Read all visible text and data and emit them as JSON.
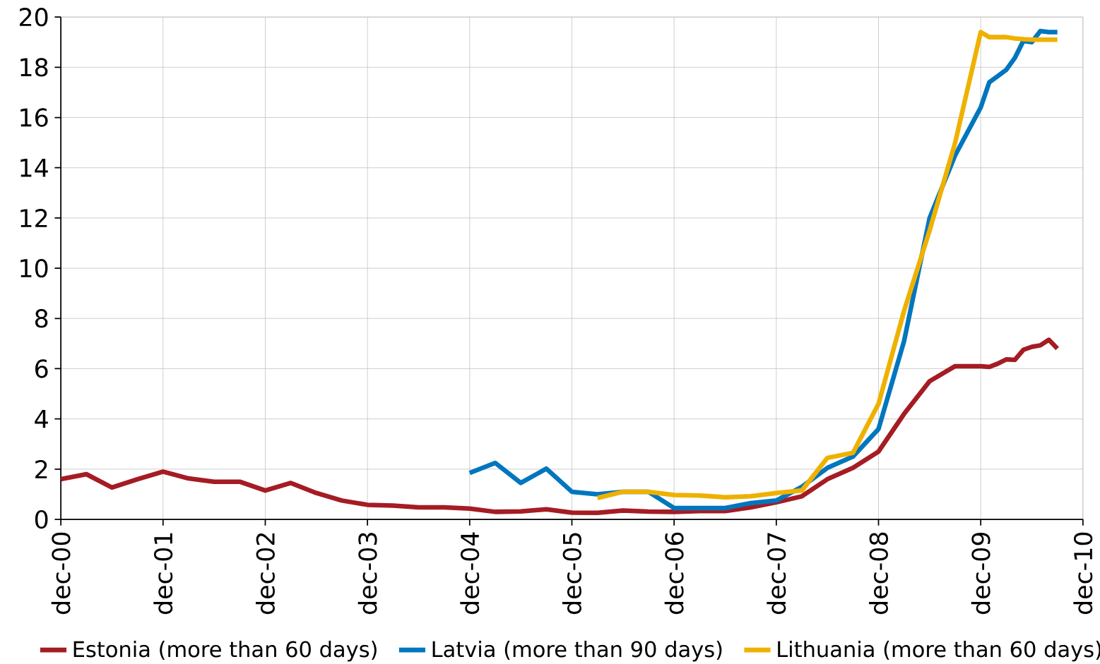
{
  "chart_data": {
    "type": "line",
    "x": [
      "2000-12",
      "2001-03",
      "2001-06",
      "2001-09",
      "2001-12",
      "2002-03",
      "2002-06",
      "2002-09",
      "2002-12",
      "2003-03",
      "2003-06",
      "2003-09",
      "2003-12",
      "2004-03",
      "2004-06",
      "2004-09",
      "2004-12",
      "2005-03",
      "2005-06",
      "2005-09",
      "2005-12",
      "2006-03",
      "2006-06",
      "2006-09",
      "2006-12",
      "2007-03",
      "2007-06",
      "2007-09",
      "2007-12",
      "2008-03",
      "2008-06",
      "2008-09",
      "2008-12",
      "2009-03",
      "2009-06",
      "2009-09",
      "2009-12",
      "2010-01",
      "2010-02",
      "2010-03",
      "2010-04",
      "2010-05",
      "2010-06",
      "2010-07",
      "2010-08",
      "2010-09"
    ],
    "series": [
      {
        "name": "Estonia (more than 60 days)",
        "color": "#a51c24",
        "values": [
          1.6,
          1.8,
          1.27,
          1.6,
          1.9,
          1.63,
          1.5,
          1.5,
          1.15,
          1.45,
          1.05,
          0.75,
          0.58,
          0.55,
          0.48,
          0.48,
          0.43,
          0.3,
          0.32,
          0.4,
          0.27,
          0.26,
          0.35,
          0.31,
          0.3,
          0.33,
          0.33,
          0.48,
          0.68,
          0.92,
          1.6,
          2.05,
          2.7,
          4.2,
          5.5,
          6.1,
          6.1,
          6.07,
          6.2,
          6.37,
          6.35,
          6.75,
          6.87,
          6.93,
          7.15,
          6.8
        ]
      },
      {
        "name": "Latvia (more than 90 days)",
        "color": "#0076be",
        "values": [
          null,
          null,
          null,
          null,
          null,
          null,
          null,
          null,
          null,
          null,
          null,
          null,
          null,
          null,
          null,
          null,
          1.85,
          2.25,
          1.45,
          2.02,
          1.1,
          1.0,
          1.1,
          1.1,
          0.45,
          0.45,
          0.45,
          0.65,
          0.75,
          1.3,
          2.05,
          2.5,
          3.6,
          7.1,
          12.0,
          14.5,
          16.4,
          17.4,
          17.65,
          17.9,
          18.37,
          19.05,
          19.0,
          19.44,
          19.4,
          19.4
        ]
      },
      {
        "name": "Lithuania (more than 60 days)",
        "color": "#efb100",
        "values": [
          null,
          null,
          null,
          null,
          null,
          null,
          null,
          null,
          null,
          null,
          null,
          null,
          null,
          null,
          null,
          null,
          null,
          null,
          null,
          null,
          null,
          0.85,
          1.1,
          1.1,
          0.97,
          0.95,
          0.88,
          0.92,
          1.05,
          1.15,
          2.45,
          2.65,
          4.6,
          8.3,
          11.5,
          15.0,
          19.4,
          19.2,
          19.2,
          19.2,
          19.15,
          19.12,
          19.1,
          19.1,
          19.1,
          19.1
        ]
      }
    ],
    "xlim": [
      "2000-12",
      "2010-12"
    ],
    "xticks": [
      {
        "value": "2000-12",
        "label": "dec-00"
      },
      {
        "value": "2001-12",
        "label": "dec-01"
      },
      {
        "value": "2002-12",
        "label": "dec-02"
      },
      {
        "value": "2003-12",
        "label": "dec-03"
      },
      {
        "value": "2004-12",
        "label": "dec-04"
      },
      {
        "value": "2005-12",
        "label": "dec-05"
      },
      {
        "value": "2006-12",
        "label": "dec-06"
      },
      {
        "value": "2007-12",
        "label": "dec-07"
      },
      {
        "value": "2008-12",
        "label": "dec-08"
      },
      {
        "value": "2009-12",
        "label": "dec-09"
      },
      {
        "value": "2010-12",
        "label": "dec-10"
      }
    ],
    "ylim": [
      0,
      20
    ],
    "yticks": [
      0,
      2,
      4,
      6,
      8,
      10,
      12,
      14,
      16,
      18,
      20
    ],
    "grid": true,
    "legend": "bottom",
    "marker": "none",
    "line_style": "solid"
  }
}
